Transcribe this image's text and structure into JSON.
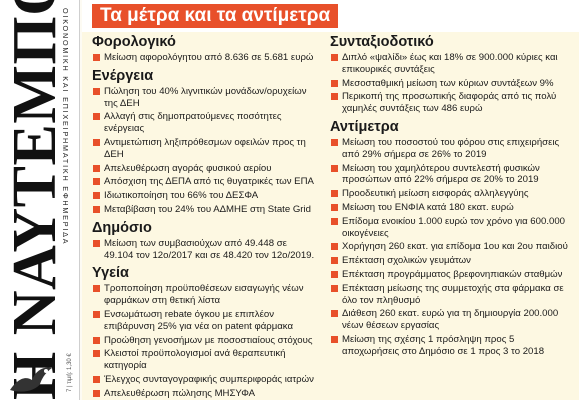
{
  "masthead": {
    "title": "Η ΝΑΥΤΕΜΠΟΡΙΚΗ",
    "subtitle": "ΟΙΚΟΝΟΜΙΚΗ ΚΑΙ ΕΠΙΧΕΙΡΗΜΑΤΙΚΗ ΕΦΗΜΕΡΙΔΑ",
    "edition": "7 | τιμή: 1,30 €"
  },
  "headline": "Τα μέτρα και τα αντίμετρα",
  "left_column": {
    "sections": [
      {
        "title": "Φορολογικό",
        "items": [
          "Μείωση αφορολόγητου από 8.636 σε 5.681 ευρώ"
        ]
      },
      {
        "title": "Ενέργεια",
        "items": [
          "Πώληση του 40% λιγνιτικών μονάδων/ορυχείων της ΔΕΗ",
          "Αλλαγή στις δημοπρατούμενες ποσότητες ενέργειας",
          "Αντιμετώπιση ληξιπρόθεσμων οφειλών προς τη ΔΕΗ",
          "Απελευθέρωση αγοράς φυσικού αερίου",
          "Απόσχιση της ΔΕΠΑ από τις θυγατρικές των ΕΠΑ",
          "Ιδιωτικοποίηση του 66% του ΔΕΣΦΑ",
          "Μεταβίβαση του 24% του ΑΔΜΗΕ στη State Grid"
        ]
      },
      {
        "title": "Δημόσιο",
        "items": [
          "Μείωση των συμβασιούχων από 49.448 σε 49.104 τον 12ο/2017 και σε 48.420 τον 12ο/2019."
        ]
      },
      {
        "title": "Υγεία",
        "items": [
          "Τροποποίηση προϋποθέσεων εισαγωγής νέων φαρμάκων στη θετική λίστα",
          "Ενσωμάτωση rebate όγκου με επιπλέον επιβάρυνση 25% για νέα on patent φάρμακα",
          "Προώθηση γενοσήμων με ποσοστιαίους στόχους",
          "Κλειστοί προϋπολογισμοί ανά θεραπευτική κατηγορία",
          "Έλεγχος συνταγογραφικής συμπεριφοράς ιατρών",
          "Απελευθέρωση πώλησης ΜΗΣΥΦΑ"
        ]
      }
    ]
  },
  "right_column": {
    "sections": [
      {
        "title": "Συνταξιοδοτικό",
        "items": [
          "Διπλό «ψαλίδι» έως και 18% σε 900.000 κύριες και επικουρικές συντάξεις",
          "Μεσοσταθμική μείωση των κύριων συντάξεων 9%",
          "Περικοπή της προσωπικής διαφοράς από τις πολύ χαμηλές συντάξεις των 486 ευρώ"
        ]
      },
      {
        "title": "Αντίμετρα",
        "items": [
          "Μείωση του ποσοστού του φόρου στις επιχειρήσεις από 29% σήμερα σε 26% το 2019",
          "Μείωση του χαμηλότερου συντελεστή φυσικών προσώπων από 22% σήμερα σε 20% το 2019",
          "Προοδευτική μείωση εισφοράς αλληλεγγύης",
          "Μείωση του ΕΝΦΙΑ κατά 180 εκατ. ευρώ",
          "Επίδομα ενοικίου 1.000 ευρώ τον χρόνο για 600.000 οικογένειες",
          "Χορήγηση 260 εκατ. για επίδομα 1ου και 2ου παιδιού",
          "Επέκταση σχολικών γευμάτων",
          "Επέκταση προγράμματος βρεφονηπιακών σταθμών",
          "Επέκταση μείωσης της συμμετοχής στα φάρμακα σε όλο τον πληθυσμό",
          "Διάθεση 260 εκατ. ευρώ για τη δημιουργία 200.000 νέων θέσεων εργασίας",
          "Μείωση της σχέσης 1 πρόσληψη προς 5 αποχωρήσεις στο Δημόσιο σε 1 προς 3 το 2018"
        ]
      }
    ]
  },
  "colors": {
    "accent": "#e8502a",
    "panel_background": "#fdf8e2",
    "text": "#1a1a1a"
  }
}
